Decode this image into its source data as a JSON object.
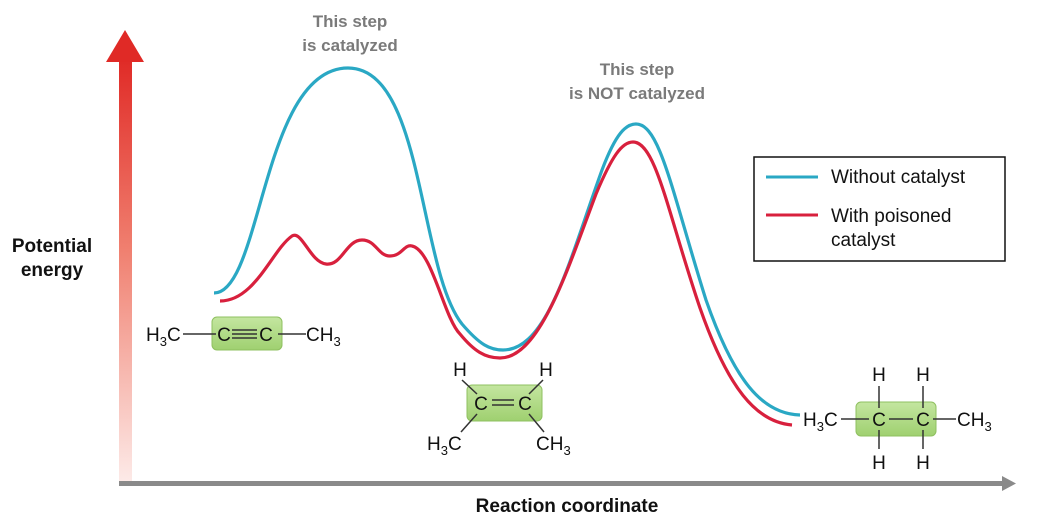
{
  "axes": {
    "y_label_line1": "Potential",
    "y_label_line2": "energy",
    "x_label": "Reaction coordinate"
  },
  "annotations": {
    "step1_line1": "This step",
    "step1_line2": "is catalyzed",
    "step2_line1": "This step",
    "step2_line2": "is NOT catalyzed"
  },
  "legend": {
    "without": "Without catalyst",
    "with_line1": "With poisoned",
    "with_line2": "catalyst"
  },
  "colors": {
    "without_catalyst": "#2aa8c4",
    "with_poisoned_catalyst": "#d8203d",
    "highlight_box": "#a8d87a",
    "annotation_text": "#7a7a7a",
    "axis_gray": "#8a8a8a",
    "arrow_red": "#e02a26"
  },
  "molecules": {
    "alkyne": {
      "left_group": "H3C",
      "atom1": "C",
      "atom2": "C",
      "right_group": "CH3"
    },
    "alkene": {
      "h_left": "H",
      "h_right": "H",
      "atom1": "C",
      "atom2": "C",
      "me_left": "H3C",
      "me_right": "CH3"
    },
    "alkane": {
      "left_group": "H3C",
      "atom1": "C",
      "atom2": "C",
      "right_group": "CH3",
      "h_top1": "H",
      "h_top2": "H",
      "h_bot1": "H",
      "h_bot2": "H"
    }
  }
}
